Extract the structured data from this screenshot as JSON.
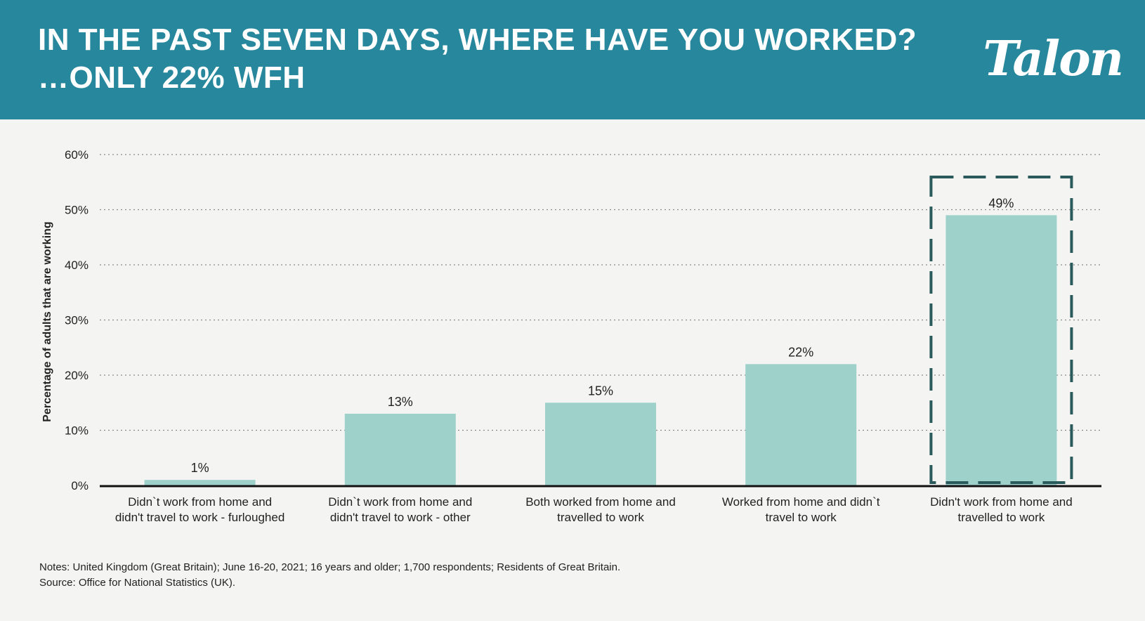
{
  "header": {
    "title_line1": "IN THE PAST SEVEN DAYS, WHERE HAVE YOU WORKED?",
    "title_line2": "…ONLY 22% WFH",
    "logo_text": "Talon",
    "background_color": "#27879c"
  },
  "chart_data": {
    "type": "bar",
    "categories": [
      [
        "Didn`t work from home and",
        "didn't travel to work - furloughed"
      ],
      [
        "Didn`t work from home and",
        "didn't travel to work - other"
      ],
      [
        "Both worked from home and",
        "travelled to work"
      ],
      [
        "Worked from home and didn`t",
        "travel to work"
      ],
      [
        "Didn't work from home and",
        "travelled to work"
      ]
    ],
    "values": [
      1,
      13,
      15,
      22,
      49
    ],
    "data_labels": [
      "1%",
      "13%",
      "15%",
      "22%",
      "49%"
    ],
    "ylabel": "Percentage of adults that are working",
    "ylim": [
      0,
      60
    ],
    "yticks": [
      0,
      10,
      20,
      30,
      40,
      50,
      60
    ],
    "ytick_labels": [
      "0%",
      "10%",
      "20%",
      "30%",
      "40%",
      "50%",
      "60%"
    ],
    "grid": "horizontal dotted",
    "highlight_index": 4,
    "bar_color": "#9fd1cb",
    "highlight_border_color": "#2a5a5c"
  },
  "footer": {
    "notes": "Notes: United Kingdom (Great Britain); June 16-20, 2021; 16 years and older; 1,700 respondents; Residents of Great Britain.",
    "source": "Source: Office for National Statistics (UK)."
  }
}
